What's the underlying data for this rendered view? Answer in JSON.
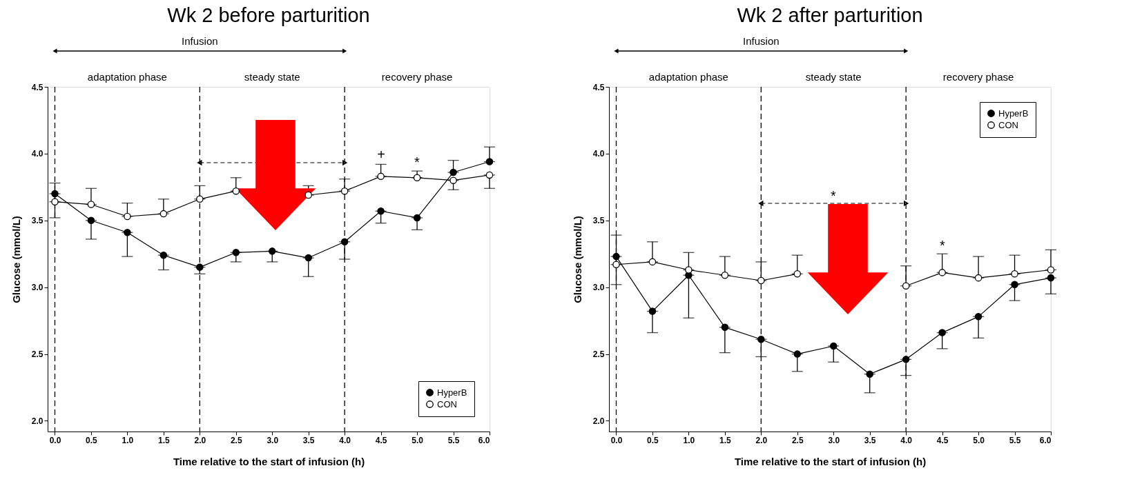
{
  "chart_data": [
    {
      "type": "line",
      "title": "Wk 2 before parturition",
      "xlabel": "Time relative to the start of infusion (h)",
      "ylabel": "Glucose (mmol/L)",
      "x": [
        0,
        0.5,
        1,
        1.5,
        2,
        2.5,
        3,
        3.5,
        4,
        4.5,
        5,
        5.5,
        6
      ],
      "series": [
        {
          "name": "HyperB",
          "color": "#000000",
          "values": [
            3.7,
            3.5,
            3.41,
            3.24,
            3.15,
            3.26,
            3.27,
            3.22,
            3.34,
            3.57,
            3.52,
            3.86,
            3.94
          ],
          "errors": [
            [
              3.52,
              3.7
            ],
            [
              3.36,
              3.5
            ],
            [
              3.23,
              3.41
            ],
            [
              3.13,
              3.24
            ],
            [
              3.1,
              3.15
            ],
            [
              3.19,
              3.26
            ],
            [
              3.19,
              3.27
            ],
            [
              3.08,
              3.22
            ],
            [
              3.21,
              3.34
            ],
            [
              3.48,
              3.57
            ],
            [
              3.43,
              3.52
            ],
            [
              3.86,
              3.95
            ],
            [
              3.94,
              4.05
            ]
          ]
        },
        {
          "name": "CON",
          "color": "#ffffff",
          "values": [
            3.64,
            3.62,
            3.53,
            3.55,
            3.66,
            3.72,
            null,
            3.69,
            3.72,
            3.83,
            3.82,
            3.8,
            3.84
          ],
          "errors": [
            [
              3.64,
              3.78
            ],
            [
              3.62,
              3.74
            ],
            [
              3.53,
              3.63
            ],
            [
              3.55,
              3.66
            ],
            [
              3.66,
              3.76
            ],
            [
              3.72,
              3.82
            ],
            null,
            [
              3.69,
              3.76
            ],
            [
              3.72,
              3.81
            ],
            [
              3.83,
              3.92
            ],
            [
              3.82,
              3.87
            ],
            [
              3.73,
              3.8
            ],
            [
              3.74,
              3.84
            ]
          ]
        }
      ],
      "xlim": [
        -0.1,
        6.0
      ],
      "ylim": [
        1.92,
        4.5
      ],
      "xticks": [
        {
          "value": 0,
          "label": "0.0"
        },
        0.5,
        {
          "value": 1,
          "label": "1.0"
        },
        1.5,
        {
          "value": 2,
          "label": "2.0"
        },
        2.5,
        {
          "value": 3,
          "label": "3.0"
        },
        3.5,
        {
          "value": 4,
          "label": "4.0"
        },
        4.5,
        {
          "value": 5,
          "label": "5.0"
        },
        5.5,
        {
          "value": 6,
          "label": "6.0"
        }
      ],
      "yticks": [
        {
          "value": 2,
          "label": "2.0"
        },
        2.5,
        {
          "value": 3,
          "label": "3.0"
        },
        3.5,
        {
          "value": 4,
          "label": "4.0"
        },
        4.5
      ],
      "ref_lines": [
        {
          "axis": "x",
          "value": 0,
          "line_style": "dashed"
        },
        {
          "axis": "x",
          "value": 2,
          "line_style": "dashed"
        },
        {
          "axis": "x",
          "value": 4,
          "line_style": "dashed"
        }
      ],
      "annotations": [
        "Infusion",
        "adaptation phase",
        "steady state",
        "recovery phase",
        "+",
        "*"
      ],
      "marker": "circle",
      "line_style": "solid",
      "grid": false,
      "legend": "bottom right"
    },
    {
      "type": "line",
      "title": "Wk 2 after parturition",
      "xlabel": "Time relative to the start of infusion (h)",
      "ylabel": "Glucose (mmol/L)",
      "x": [
        0,
        0.5,
        1,
        1.5,
        2,
        2.5,
        3,
        3.5,
        4,
        4.5,
        5,
        5.5,
        6
      ],
      "series": [
        {
          "name": "HyperB",
          "color": "#000000",
          "values": [
            3.23,
            2.82,
            3.09,
            2.7,
            2.61,
            2.5,
            2.56,
            2.35,
            2.46,
            2.66,
            2.78,
            3.02,
            3.07
          ],
          "errors": [
            [
              3.02,
              3.23
            ],
            [
              2.66,
              2.82
            ],
            [
              2.77,
              3.09
            ],
            [
              2.51,
              2.7
            ],
            [
              2.48,
              2.61
            ],
            [
              2.37,
              2.5
            ],
            [
              2.44,
              2.56
            ],
            [
              2.21,
              2.35
            ],
            [
              2.34,
              2.46
            ],
            [
              2.54,
              2.66
            ],
            [
              2.62,
              2.78
            ],
            [
              2.9,
              3.02
            ],
            [
              2.95,
              3.07
            ]
          ]
        },
        {
          "name": "CON",
          "color": "#ffffff",
          "values": [
            3.17,
            3.19,
            3.13,
            3.09,
            3.05,
            3.1,
            null,
            null,
            3.01,
            3.11,
            3.07,
            3.1,
            3.13
          ],
          "errors": [
            [
              3.17,
              3.39
            ],
            [
              3.19,
              3.34
            ],
            [
              3.13,
              3.26
            ],
            [
              3.09,
              3.23
            ],
            [
              3.05,
              3.19
            ],
            [
              3.1,
              3.24
            ],
            null,
            null,
            [
              3.01,
              3.16
            ],
            [
              3.11,
              3.25
            ],
            [
              3.07,
              3.23
            ],
            [
              3.1,
              3.24
            ],
            [
              3.13,
              3.28
            ]
          ]
        }
      ],
      "xlim": [
        -0.1,
        6.0
      ],
      "ylim": [
        1.92,
        4.5
      ],
      "xticks": [
        {
          "value": 0,
          "label": "0.0"
        },
        0.5,
        {
          "value": 1,
          "label": "1.0"
        },
        1.5,
        {
          "value": 2,
          "label": "2.0"
        },
        2.5,
        {
          "value": 3,
          "label": "3.0"
        },
        3.5,
        {
          "value": 4,
          "label": "4.0"
        },
        4.5,
        {
          "value": 5,
          "label": "5.0"
        },
        5.5,
        {
          "value": 6,
          "label": "6.0"
        }
      ],
      "yticks": [
        {
          "value": 2,
          "label": "2.0"
        },
        2.5,
        {
          "value": 3,
          "label": "3.0"
        },
        3.5,
        {
          "value": 4,
          "label": "4.0"
        },
        4.5
      ],
      "ref_lines": [
        {
          "axis": "x",
          "value": 0,
          "line_style": "dashed"
        },
        {
          "axis": "x",
          "value": 2,
          "line_style": "dashed"
        },
        {
          "axis": "x",
          "value": 4,
          "line_style": "dashed"
        }
      ],
      "annotations": [
        "Infusion",
        "adaptation phase",
        "steady state",
        "recovery phase",
        "*",
        "*"
      ],
      "marker": "circle",
      "line_style": "solid",
      "grid": false,
      "legend": "top right"
    }
  ]
}
